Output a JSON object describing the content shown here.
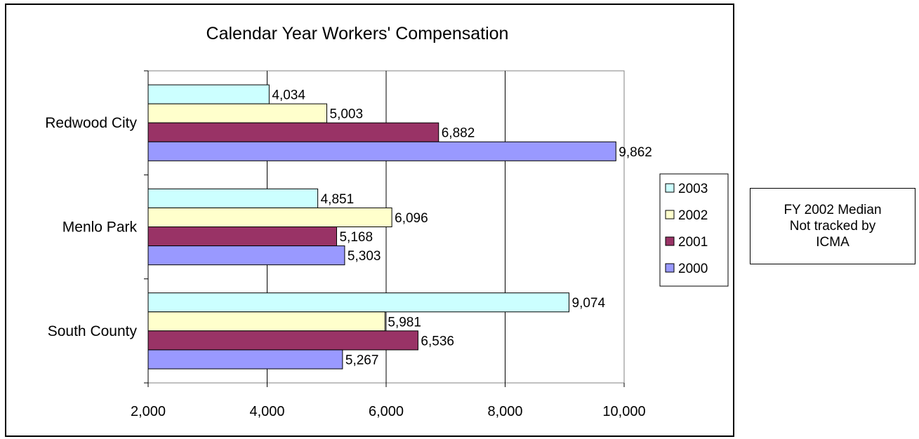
{
  "chart_data": {
    "type": "bar",
    "orientation": "horizontal",
    "title": "Calendar Year Workers' Compensation",
    "categories": [
      "Redwood City",
      "Menlo Park",
      "South County"
    ],
    "series": [
      {
        "name": "2003",
        "color": "#ccffff",
        "values": [
          4034,
          4851,
          9074
        ],
        "labels": [
          "4,034",
          "4,851",
          "9,074"
        ]
      },
      {
        "name": "2002",
        "color": "#ffffcc",
        "values": [
          5003,
          6096,
          5981
        ],
        "labels": [
          "5,003",
          "6,096",
          "5,981"
        ]
      },
      {
        "name": "2001",
        "color": "#993366",
        "values": [
          6882,
          5168,
          6536
        ],
        "labels": [
          "6,882",
          "5,168",
          "6,536"
        ]
      },
      {
        "name": "2000",
        "color": "#9999ff",
        "values": [
          9862,
          5303,
          5267
        ],
        "labels": [
          "9,862",
          "5,303",
          "5,267"
        ]
      }
    ],
    "xlim": [
      2000,
      10000
    ],
    "xticks": [
      2000,
      4000,
      6000,
      8000,
      10000
    ],
    "xtick_labels": [
      "2,000",
      "4,000",
      "6,000",
      "8,000",
      "10,000"
    ],
    "grid": "vertical",
    "legend_position": "right"
  },
  "note": {
    "lines": [
      "FY 2002 Median",
      "Not tracked by",
      "ICMA"
    ]
  }
}
